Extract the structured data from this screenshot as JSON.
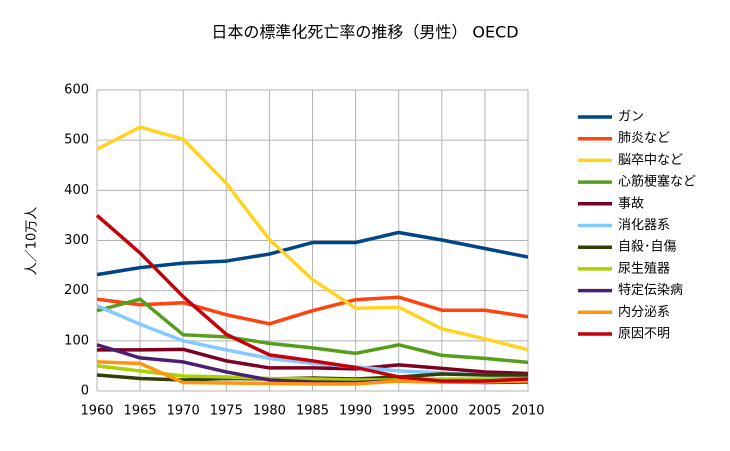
{
  "chart_data": {
    "type": "line",
    "title": "日本の標準化死亡率の推移（男性） OECD",
    "y_label": "人／10万人",
    "x": [
      1960,
      1965,
      1970,
      1975,
      1980,
      1985,
      1990,
      1995,
      2000,
      2005,
      2010
    ],
    "xlim": [
      1960,
      2010
    ],
    "xticks": [
      1960,
      1965,
      1970,
      1975,
      1980,
      1985,
      1990,
      1995,
      2000,
      2005,
      2010
    ],
    "ylim": [
      0,
      600
    ],
    "yticks": [
      0,
      100,
      200,
      300,
      400,
      500,
      600
    ],
    "grid": true,
    "legend": "right",
    "series": [
      {
        "name": "ガン",
        "color": "#004586",
        "values": [
          232,
          246,
          255,
          259,
          273,
          296,
          296,
          316,
          301,
          284,
          267
        ]
      },
      {
        "name": "肺炎など",
        "color": "#ff420e",
        "values": [
          183,
          172,
          176,
          152,
          134,
          160,
          182,
          187,
          161,
          161,
          148
        ]
      },
      {
        "name": "脳卒中など",
        "color": "#ffd320",
        "values": [
          482,
          526,
          502,
          414,
          302,
          222,
          165,
          167,
          124,
          104,
          82
        ]
      },
      {
        "name": "心筋梗塞など",
        "color": "#579d1c",
        "values": [
          160,
          183,
          112,
          108,
          95,
          86,
          75,
          92,
          71,
          65,
          57
        ]
      },
      {
        "name": "事故",
        "color": "#7e0021",
        "values": [
          82,
          82,
          83,
          60,
          46,
          46,
          44,
          52,
          45,
          38,
          35
        ]
      },
      {
        "name": "消化器系",
        "color": "#83caff",
        "values": [
          170,
          133,
          100,
          82,
          65,
          55,
          48,
          40,
          36,
          32,
          30
        ]
      },
      {
        "name": "自殺･自傷",
        "color": "#314004",
        "values": [
          32,
          25,
          22,
          25,
          24,
          26,
          24,
          28,
          34,
          32,
          32
        ]
      },
      {
        "name": "尿生殖器",
        "color": "#aecf00",
        "values": [
          50,
          40,
          30,
          28,
          25,
          24,
          22,
          22,
          24,
          24,
          25
        ]
      },
      {
        "name": "特定伝染病",
        "color": "#4b1f6f",
        "values": [
          92,
          66,
          58,
          38,
          22,
          18,
          17,
          20,
          18,
          17,
          18
        ]
      },
      {
        "name": "内分泌系",
        "color": "#ff950e",
        "values": [
          58,
          55,
          17,
          16,
          15,
          14,
          14,
          20,
          18,
          18,
          20
        ]
      },
      {
        "name": "原因不明",
        "color": "#c5000b",
        "values": [
          350,
          275,
          188,
          113,
          72,
          60,
          47,
          28,
          20,
          20,
          24
        ]
      }
    ]
  }
}
